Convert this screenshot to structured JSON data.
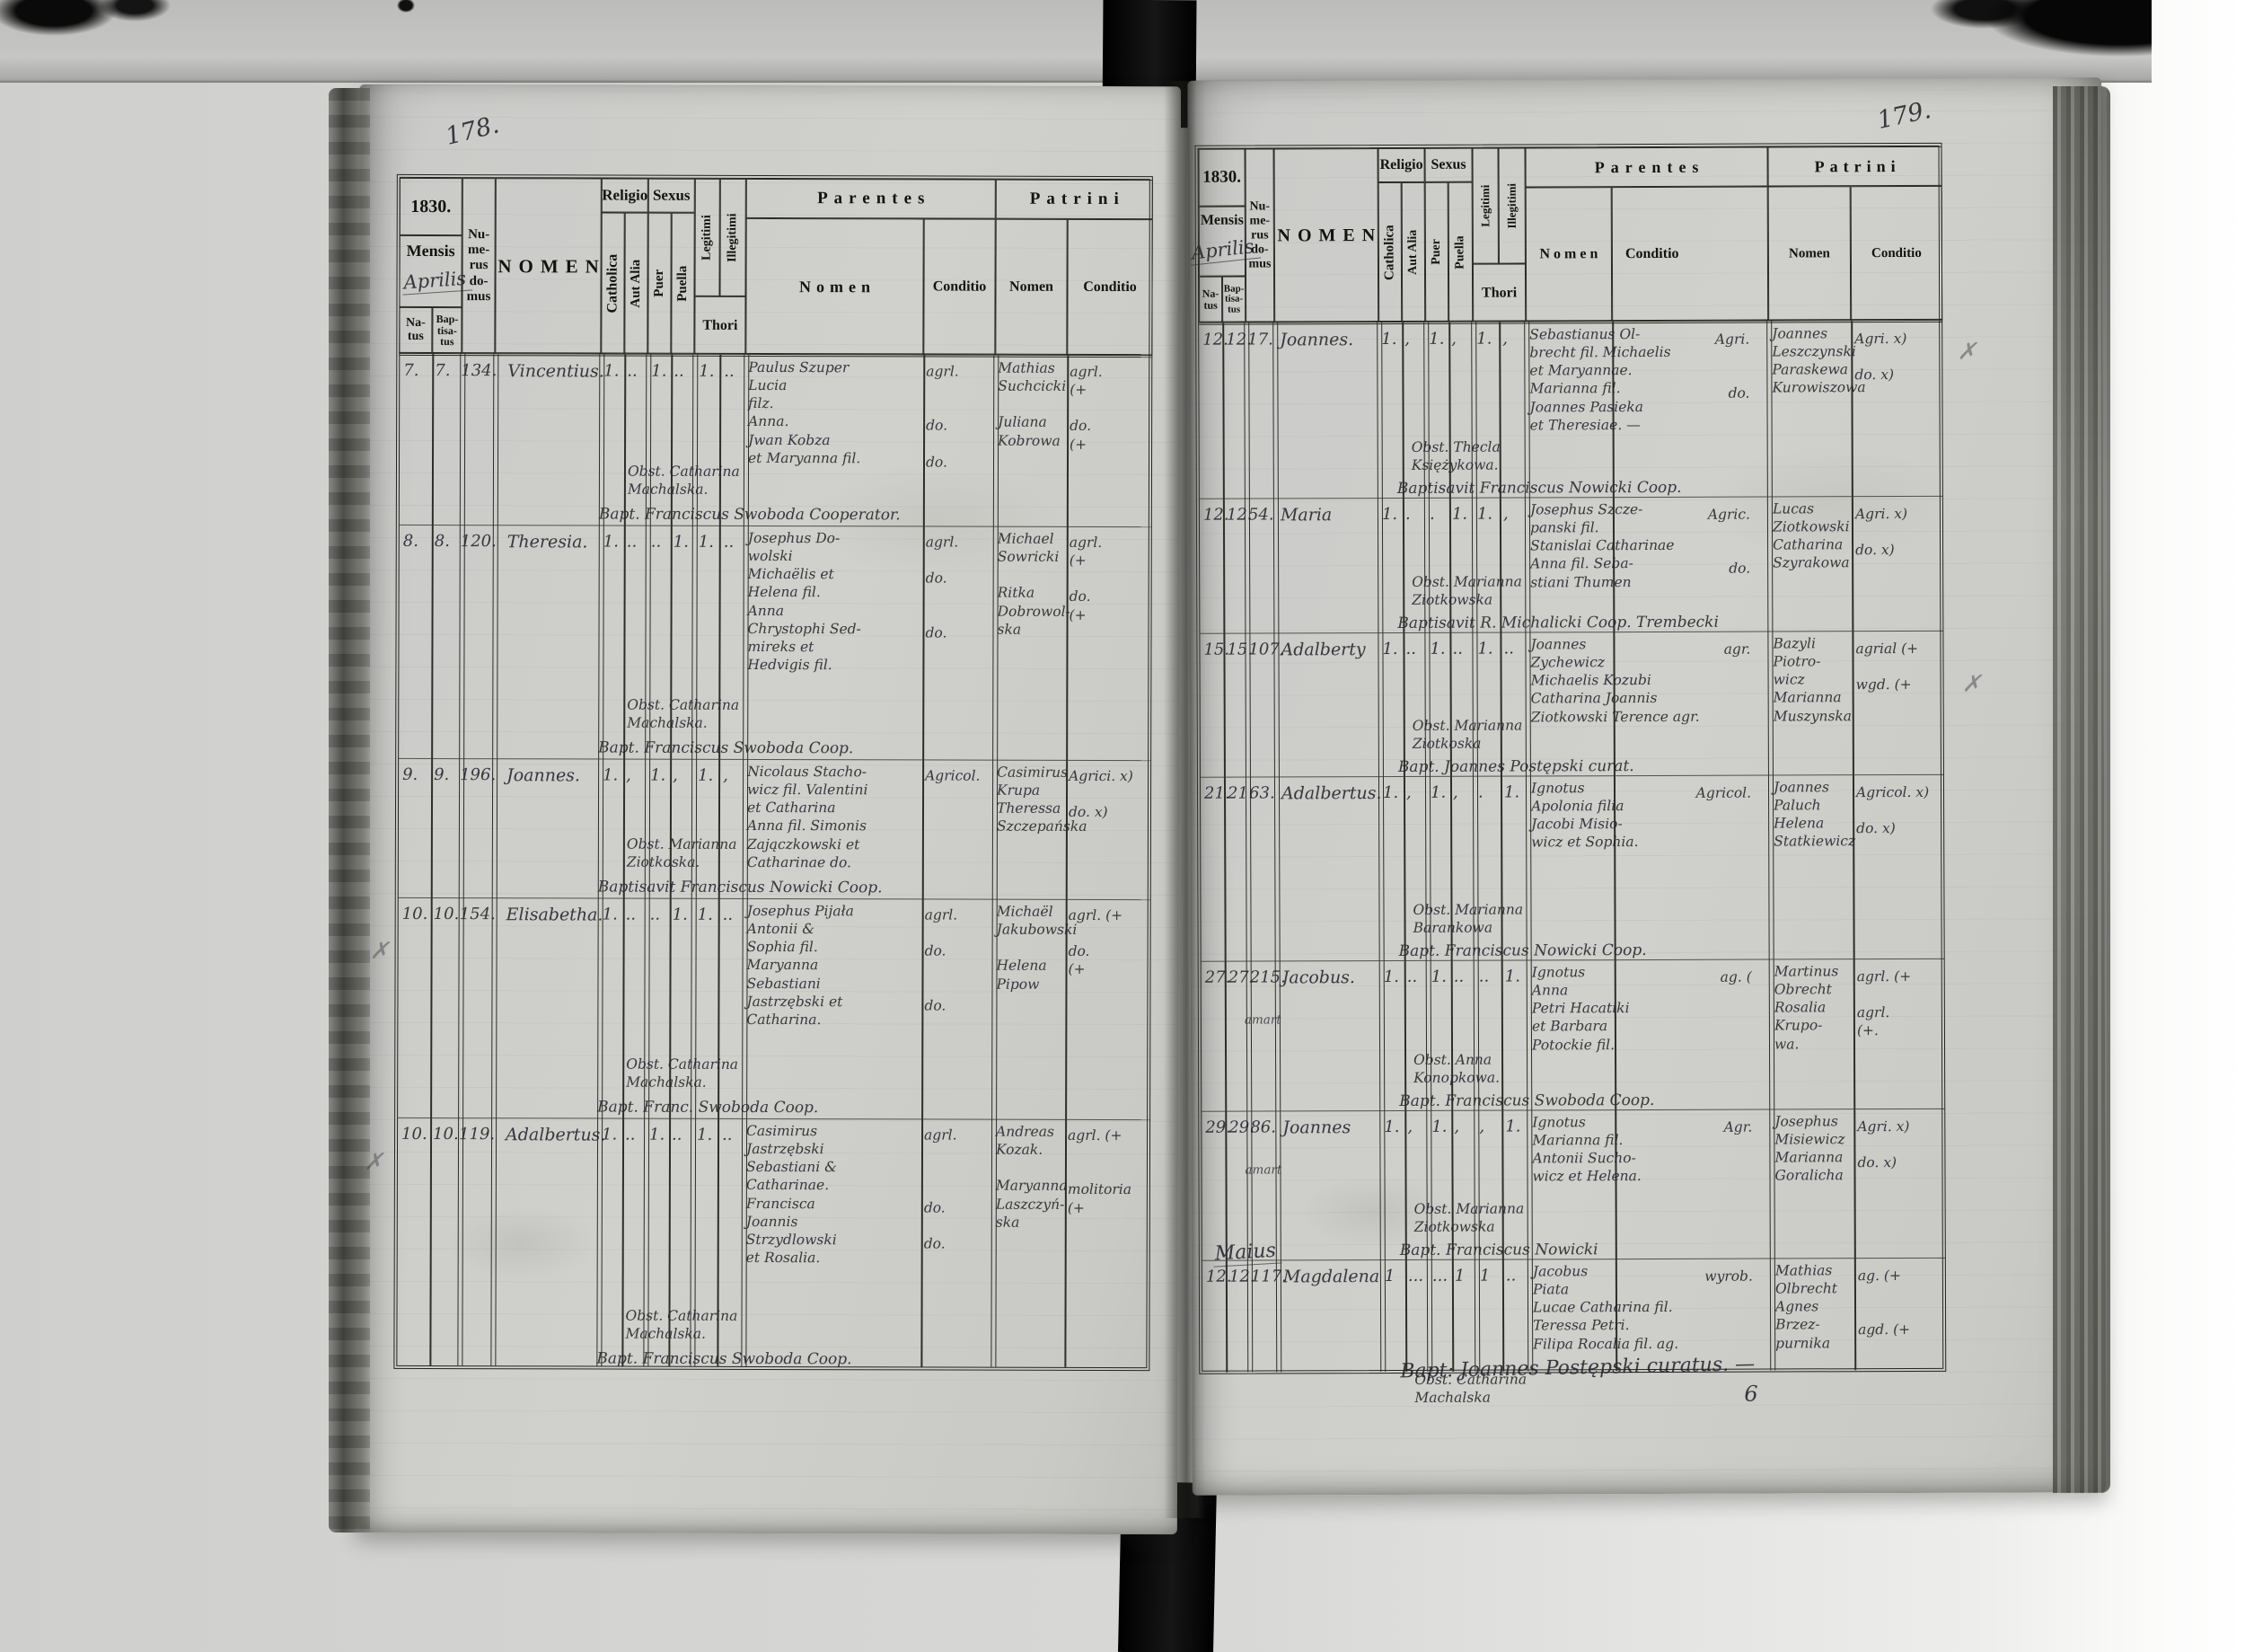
{
  "header": {
    "year": "1830.",
    "mensis": "Mensis",
    "natus": "Na-\ntus",
    "baptisatus": "Bap-\ntisa-\ntus",
    "numerus_domus": "Nu-\nme-\nrus\ndo-\nmus",
    "nomen": "NOMEN",
    "religio": "Religio",
    "catholica": "Catholica",
    "aut_alia": "Aut Alia",
    "sexus": "Sexus",
    "puer": "Puer",
    "puella": "Puella",
    "legitimi": "Legitimi",
    "illegitimi": "Illegitimi",
    "thori": "Thori",
    "parentes": "Parentes",
    "patrini": "Patrini",
    "sub_nomen": "Nomen",
    "sub_conditio": "Conditio"
  },
  "pages": [
    {
      "page_number": "178.",
      "month": "Aprilis",
      "margin_marks": [
        "✗",
        "✗"
      ],
      "entries": [
        {
          "natus": "7.",
          "baptisatus": "7.",
          "numerus": "134.",
          "nomen": "Vincentius.",
          "note": "",
          "catholica": "1.",
          "aut_alia": "..",
          "puer": "1.",
          "puella": "..",
          "legitimi": "1.",
          "illegitimi": "..",
          "parentes_nomen": "Paulus Szuper\nLucia\n      filz.\n   Anna.\nJwan Kobza\net Maryanna fil.",
          "parentes_conditio": "agrl.\n\n\ndo.\n\ndo.",
          "patrini_nomen": "Mathias\nSuchcicki\n\nJuliana\nKobrowa",
          "patrini_conditio": "agrl.\n(+\n\ndo.\n(+",
          "obstetrix": "Obst. Catharina\nMachalska.",
          "baptisavit": "Bapt. Franciscus Swoboda Cooperator."
        },
        {
          "natus": "8.",
          "baptisatus": "8.",
          "numerus": "120.",
          "nomen": "Theresia.",
          "note": "",
          "catholica": "1.",
          "aut_alia": "..",
          "puer": "..",
          "puella": "1.",
          "legitimi": "1.",
          "illegitimi": "..",
          "parentes_nomen": "Josephus Do-\nwolski\nMichaëlis et\nHelena fil.\nAnna\nChrystophi Sed-\nmireks et\nHedvigis fil.",
          "parentes_conditio": "agrl.\n\ndo.\n\n\ndo.",
          "patrini_nomen": "Michael\nSowricki\n\nRitka\nDobrowol-\nska",
          "patrini_conditio": "agrl.\n(+\n\ndo.\n(+",
          "obstetrix": "Obst. Catharina\nMachalska.",
          "baptisavit": "Bapt. Franciscus Swoboda Coop."
        },
        {
          "natus": "9.",
          "baptisatus": "9.",
          "numerus": "196.",
          "nomen": "Joannes.",
          "note": "",
          "catholica": "1.",
          "aut_alia": ",",
          "puer": "1.",
          "puella": ",",
          "legitimi": "1.",
          "illegitimi": ",",
          "parentes_nomen": "Nicolaus Stacho-\nwicz fil. Valentini\net Catharina\nAnna fil. Simonis\nZajączkowski et Catharinae do.",
          "parentes_conditio": "Agricol.",
          "patrini_nomen": "Casimirus\nKrupa\nTheressa\nSzczepańska",
          "patrini_conditio": "Agrici. x)\n\ndo. x)",
          "obstetrix": "Obst. Marianna\nZiotkoska.",
          "baptisavit": "Baptisavit Franciscus Nowicki Coop."
        },
        {
          "natus": "10.",
          "baptisatus": "10.",
          "numerus": "154.",
          "nomen": "Elisabetha.",
          "note": "",
          "catholica": "1.",
          "aut_alia": "..",
          "puer": "..",
          "puella": "1.",
          "legitimi": "1.",
          "illegitimi": "..",
          "parentes_nomen": "Josephus Pijała\nAntonii &\nSophia fil.\nMaryanna\nSebastiani\nJastrzębski et\nCatharina.",
          "parentes_conditio": "agrl.\n\ndo.\n\n\ndo.",
          "patrini_nomen": "Michaël\nJakubowski\n\nHelena\nPipow",
          "patrini_conditio": "agrl. (+\n\ndo.\n(+",
          "obstetrix": "Obst. Catharina\nMachalska.",
          "baptisavit": "Bapt. Franc. Swoboda Coop."
        },
        {
          "natus": "10.",
          "baptisatus": "10.",
          "numerus": "119.",
          "nomen": "Adalbertus.",
          "note": "",
          "catholica": "1.",
          "aut_alia": "..",
          "puer": "1.",
          "puella": "..",
          "legitimi": "1.",
          "illegitimi": "..",
          "parentes_nomen": "Casimirus\nJastrzębski\nSebastiani &\nCatharinae.\nFrancisca\nJoannis\nStrzydlowski\net Rosalia.",
          "parentes_conditio": "agrl.\n\n\n\ndo.\n\ndo.",
          "patrini_nomen": "Andreas\nKozak.\n\nMaryanna\nLaszczyń-\nska",
          "patrini_conditio": "agrl. (+\n\n\nmolitoria\n(+",
          "obstetrix": "Obst. Catharina\nMachalska.",
          "baptisavit": "Bapt. Franciscus Swoboda Coop."
        }
      ]
    },
    {
      "page_number": "179.",
      "month": "Aprilis",
      "month2": "Maius",
      "margin_marks": [
        "✗",
        "✗"
      ],
      "bottom_note": "Bapt: Joannes Postępski curatus. —",
      "corner_mark": "6",
      "entries": [
        {
          "natus": "12.",
          "baptisatus": "12.",
          "numerus": "17.",
          "nomen": "Joannes.",
          "note": "",
          "catholica": "1.",
          "aut_alia": ",",
          "puer": "1.",
          "puella": ",",
          "legitimi": "1.",
          "illegitimi": ",",
          "parentes_nomen": "Sebastianus Ol-\nbrecht fil. Michaelis\net Maryannae.\nMarianna fil.\nJoannes Pasieka\net Theresiae. —",
          "parentes_conditio": "Agri.\n\n\ndo.",
          "patrini_nomen": "Joannes\nLeszczynski\nParaskewa\nKurowiszowa",
          "patrini_conditio": "Agri. x)\n\ndo. x)",
          "obstetrix": "Obst. Thecla\nKsiężykowa.",
          "baptisavit": "Baptisavit Franciscus Nowicki Coop."
        },
        {
          "natus": "12.",
          "baptisatus": "12.",
          "numerus": "54.",
          "nomen": "Maria",
          "note": "",
          "catholica": "1.",
          "aut_alia": ".",
          "puer": ".",
          "puella": "1.",
          "legitimi": "1.",
          "illegitimi": ",",
          "parentes_nomen": "Josephus Szcze-\npanski fil.\nStanislai Catharinae\nAnna fil. Seba-\nstiani Thumen",
          "parentes_conditio": "Agric.\n\n\ndo.",
          "patrini_nomen": "Lucas\nZiotkowski\nCatharina\nSzyrakowa",
          "patrini_conditio": "Agri. x)\n\ndo. x)",
          "obstetrix": "Obst. Marianna\nZiotkowska",
          "baptisavit": "Baptisavit R. Michalicki Coop. Trembecki"
        },
        {
          "natus": "15.",
          "baptisatus": "15.",
          "numerus": "107.",
          "nomen": "Adalberty",
          "note": "",
          "catholica": "1.",
          "aut_alia": "..",
          "puer": "1.",
          "puella": "..",
          "legitimi": "1.",
          "illegitimi": "..",
          "parentes_nomen": "Joannes\nZychewicz\nMichaelis Kozubi\nCatharina Joannis\nZiotkowski Terence agr.",
          "parentes_conditio": "agr.",
          "patrini_nomen": "Bazyli Piotro-\nwicz\nMarianna\nMuszynska",
          "patrini_conditio": "agrial (+\n\nwgd. (+",
          "obstetrix": "Obst. Marianna\nZiotkoska",
          "baptisavit": "Bapt. Joannes Postępski curat."
        },
        {
          "natus": "21.",
          "baptisatus": "21.",
          "numerus": "63.",
          "nomen": "Adalbertus.",
          "note": "",
          "catholica": "1.",
          "aut_alia": ",",
          "puer": "1.",
          "puella": ",",
          "legitimi": ".",
          "illegitimi": "1.",
          "parentes_nomen": "Ignotus\nApolonia filia\nJacobi Misio-\nwicz et Sophia.",
          "parentes_conditio": "Agricol.",
          "patrini_nomen": "Joannes\nPaluch\nHelena\nStatkiewicz",
          "patrini_conditio": "Agricol. x)\n\ndo. x)",
          "obstetrix": "Obst. Marianna\nBarankowa",
          "baptisavit": "Bapt. Franciscus Nowicki Coop."
        },
        {
          "natus": "27.",
          "baptisatus": "27.",
          "numerus": "215.",
          "nomen": "Jacobus.",
          "note": "amart",
          "catholica": "1.",
          "aut_alia": "..",
          "puer": "1.",
          "puella": "..",
          "legitimi": "..",
          "illegitimi": "1.",
          "parentes_nomen": "Ignotus\nAnna\nPetri Hacatiki\net Barbara\nPotockie fil.",
          "parentes_conditio": "ag. (",
          "patrini_nomen": "Martinus\nObrecht\nRosalia\nKrupo-\nwa.",
          "patrini_conditio": "agrl. (+\n\nagrl.\n(+.",
          "obstetrix": "Obst. Anna\nKonopkowa.",
          "baptisavit": "Bapt. Franciscus Swoboda Coop."
        },
        {
          "natus": "29.",
          "baptisatus": "29.",
          "numerus": "86.",
          "nomen": "Joannes",
          "note": "amart",
          "catholica": "1.",
          "aut_alia": ",",
          "puer": "1.",
          "puella": ",",
          "legitimi": ",",
          "illegitimi": "1.",
          "parentes_nomen": "Ignotus\nMarianna fil.\nAntonii Sucho-\nwicz et Helena.",
          "parentes_conditio": "Agr.",
          "patrini_nomen": "Josephus\nMisiewicz\nMarianna\nGoralicha",
          "patrini_conditio": "Agri. x)\n\ndo. x)",
          "obstetrix": "Obst. Marianna\nZiotkowska",
          "baptisavit": "Bapt. Franciscus Nowicki"
        },
        {
          "natus": "12.",
          "baptisatus": "12.",
          "numerus": "117.",
          "nomen": "Magdalena",
          "note": "",
          "catholica": "1",
          "aut_alia": "...",
          "puer": "...",
          "puella": "1",
          "legitimi": "1",
          "illegitimi": "..",
          "parentes_nomen": "Jacobus\nPiata\nLucae Catharina fil.\nTeressa Petri.\nFilipa Rocalia fil. ag.",
          "parentes_conditio": "wyrob.",
          "patrini_nomen": "Mathias\nOlbrecht\nAgnes\nBrzez-\npurnika",
          "patrini_conditio": "ag. (+\n\n\nagd. (+",
          "obstetrix": "Obst. Catharina\nMachalska",
          "baptisavit": ""
        }
      ]
    }
  ]
}
